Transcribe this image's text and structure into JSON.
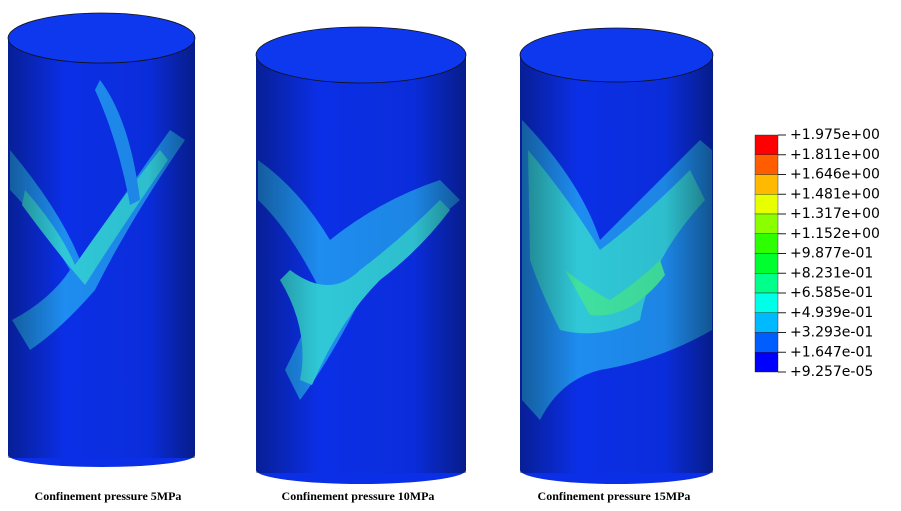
{
  "captions": [
    "Confinement pressure 5MPa",
    "Confinement pressure 10MPa",
    "Confinement pressure 15MPa"
  ],
  "legend": {
    "labels": [
      "+1.975e+00",
      "+1.811e+00",
      "+1.646e+00",
      "+1.481e+00",
      "+1.317e+00",
      "+1.152e+00",
      "+9.877e-01",
      "+8.231e-01",
      "+6.585e-01",
      "+4.939e-01",
      "+3.293e-01",
      "+1.647e-01",
      "+9.257e-05"
    ],
    "colors": [
      "#ff0000",
      "#ff5d00",
      "#ffb900",
      "#e8ff00",
      "#8bff00",
      "#2eff00",
      "#00ff2e",
      "#00ff8b",
      "#00ffe8",
      "#00b9ff",
      "#005dff",
      "#0000ff"
    ]
  }
}
